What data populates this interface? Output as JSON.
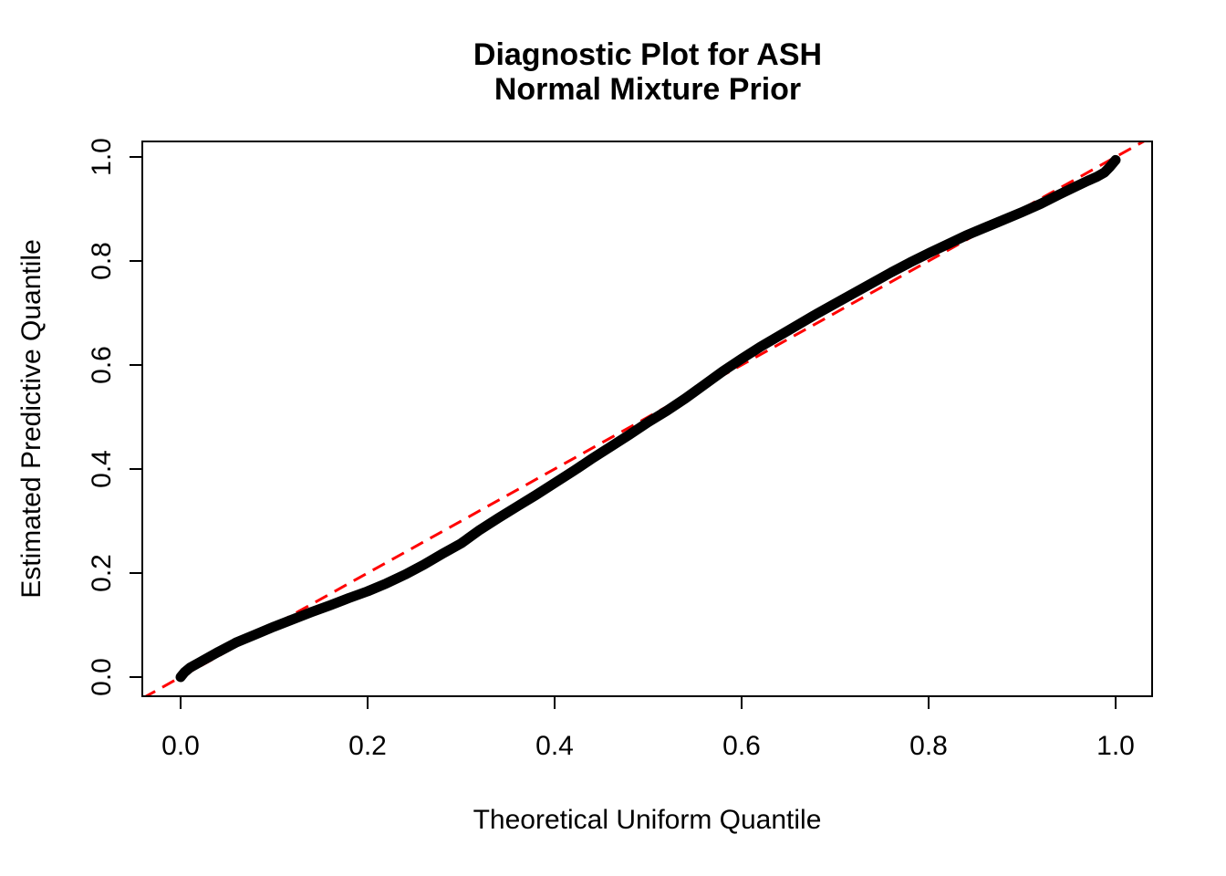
{
  "chart_data": {
    "type": "line",
    "title_lines": [
      "Diagnostic Plot for ASH",
      "Normal Mixture Prior"
    ],
    "xlabel": "Theoretical Uniform Quantile",
    "ylabel": "Estimated Predictive Quantile",
    "xlim": [
      -0.04,
      1.04
    ],
    "ylim": [
      -0.04,
      1.04
    ],
    "grid": false,
    "legend": "none",
    "x_ticks": {
      "values": [
        0.0,
        0.2,
        0.4,
        0.6,
        0.8,
        1.0
      ],
      "labels": [
        "0.0",
        "0.2",
        "0.4",
        "0.6",
        "0.8",
        "1.0"
      ]
    },
    "y_ticks": {
      "values": [
        0.0,
        0.2,
        0.4,
        0.6,
        0.8,
        1.0
      ],
      "labels": [
        "0.0",
        "0.2",
        "0.4",
        "0.6",
        "0.8",
        "1.0"
      ]
    },
    "colors": {
      "curve": "#000000",
      "reference": "#FF0000",
      "text": "#000000",
      "background": "#FFFFFF",
      "box": "#000000"
    },
    "series": [
      {
        "name": "estimated-predictive-quantile-curve",
        "color": "#000000",
        "stroke_width": 11,
        "points": [
          [
            0.0,
            0.0
          ],
          [
            0.004,
            0.009
          ],
          [
            0.01,
            0.018
          ],
          [
            0.02,
            0.028
          ],
          [
            0.04,
            0.048
          ],
          [
            0.06,
            0.067
          ],
          [
            0.08,
            0.082
          ],
          [
            0.1,
            0.097
          ],
          [
            0.12,
            0.111
          ],
          [
            0.14,
            0.125
          ],
          [
            0.16,
            0.138
          ],
          [
            0.18,
            0.152
          ],
          [
            0.2,
            0.165
          ],
          [
            0.22,
            0.18
          ],
          [
            0.24,
            0.197
          ],
          [
            0.26,
            0.216
          ],
          [
            0.28,
            0.237
          ],
          [
            0.3,
            0.257
          ],
          [
            0.32,
            0.283
          ],
          [
            0.34,
            0.306
          ],
          [
            0.36,
            0.328
          ],
          [
            0.38,
            0.35
          ],
          [
            0.4,
            0.373
          ],
          [
            0.42,
            0.396
          ],
          [
            0.44,
            0.42
          ],
          [
            0.46,
            0.443
          ],
          [
            0.48,
            0.466
          ],
          [
            0.5,
            0.49
          ],
          [
            0.52,
            0.512
          ],
          [
            0.54,
            0.536
          ],
          [
            0.56,
            0.562
          ],
          [
            0.58,
            0.588
          ],
          [
            0.6,
            0.612
          ],
          [
            0.62,
            0.635
          ],
          [
            0.64,
            0.656
          ],
          [
            0.66,
            0.677
          ],
          [
            0.68,
            0.698
          ],
          [
            0.7,
            0.718
          ],
          [
            0.72,
            0.738
          ],
          [
            0.74,
            0.758
          ],
          [
            0.76,
            0.778
          ],
          [
            0.78,
            0.797
          ],
          [
            0.8,
            0.815
          ],
          [
            0.82,
            0.832
          ],
          [
            0.84,
            0.849
          ],
          [
            0.86,
            0.864
          ],
          [
            0.88,
            0.879
          ],
          [
            0.9,
            0.894
          ],
          [
            0.92,
            0.91
          ],
          [
            0.94,
            0.928
          ],
          [
            0.955,
            0.941
          ],
          [
            0.97,
            0.954
          ],
          [
            0.98,
            0.962
          ],
          [
            0.988,
            0.97
          ],
          [
            0.994,
            0.981
          ],
          [
            0.998,
            0.99
          ],
          [
            1.0,
            0.994
          ]
        ]
      }
    ],
    "reference_line": {
      "name": "identity-line",
      "color": "#FF0000",
      "style": "dashed",
      "from": [
        -0.04,
        -0.04
      ],
      "to": [
        1.04,
        1.04
      ]
    }
  }
}
